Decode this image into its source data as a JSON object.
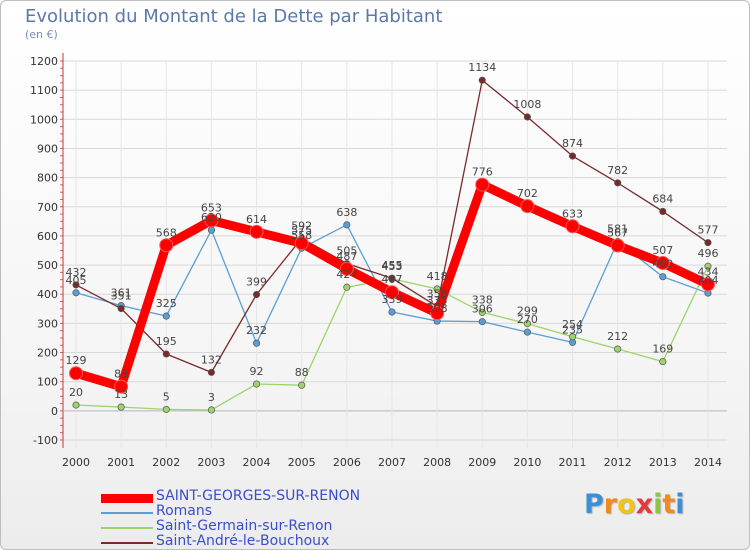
{
  "chart_data": {
    "type": "line",
    "title": "Evolution du Montant de la Dette par Habitant",
    "ylabel": "(en €)",
    "xlabel": "",
    "categories": [
      "2000",
      "2001",
      "2002",
      "2003",
      "2004",
      "2005",
      "2006",
      "2007",
      "2008",
      "2009",
      "2010",
      "2011",
      "2012",
      "2013",
      "2014"
    ],
    "yticks": [
      "-100",
      "0",
      "100",
      "200",
      "300",
      "400",
      "500",
      "600",
      "700",
      "800",
      "900",
      "1000",
      "1100",
      "1200"
    ],
    "ylim": [
      -100,
      1200
    ],
    "series": [
      {
        "name": "SAINT-GEORGES-SUR-RENON",
        "color": "#ff0000",
        "values": [
          129,
          83,
          568,
          653,
          614,
          575,
          487,
          407,
          335,
          776,
          702,
          633,
          567,
          507,
          434
        ]
      },
      {
        "name": "Romans",
        "color": "#5a9ed6",
        "values": [
          405,
          361,
          325,
          620,
          232,
          558,
          638,
          339,
          308,
          306,
          270,
          235,
          581,
          460,
          404
        ]
      },
      {
        "name": "Saint-Germain-sur-Renon",
        "color": "#9bd46a",
        "values": [
          20,
          13,
          5,
          3,
          92,
          88,
          424,
          453,
          418,
          338,
          299,
          254,
          212,
          169,
          496
        ]
      },
      {
        "name": "Saint-André-le-Bouchoux",
        "color": "#7a2a2a",
        "values": [
          432,
          351,
          195,
          132,
          399,
          592,
          505,
          455,
          358,
          1134,
          1008,
          874,
          782,
          684,
          577
        ]
      }
    ],
    "value_labels": [
      [
        "129",
        "83",
        "568",
        "653",
        "614",
        "575",
        "487",
        "407",
        "335",
        "776",
        "702",
        "633",
        "567",
        "507",
        "434"
      ],
      [
        "405",
        "361",
        "325",
        "620",
        "232",
        "558",
        "638",
        "339",
        "308",
        "306",
        "270",
        "235",
        "581",
        "460",
        "404"
      ],
      [
        "20",
        "13",
        "5",
        "3",
        "92",
        "88",
        "424",
        "453",
        "418",
        "338",
        "299",
        "254",
        "212",
        "169",
        "496"
      ],
      [
        "432",
        "351",
        "195",
        "132",
        "399",
        "592",
        "505",
        "455",
        "358",
        "1134",
        "1008",
        "874",
        "782",
        "684",
        "577"
      ]
    ]
  },
  "legend": {
    "items": [
      {
        "label": "SAINT-GEORGES-SUR-RENON",
        "color": "#ff0000"
      },
      {
        "label": "Romans",
        "color": "#5a9ed6"
      },
      {
        "label": "Saint-Germain-sur-Renon",
        "color": "#9bd46a"
      },
      {
        "label": "Saint-André-le-Bouchoux",
        "color": "#7a2a2a"
      }
    ]
  },
  "brand": {
    "letters": [
      "P",
      "r",
      "o",
      "x",
      "i",
      "t",
      "i"
    ],
    "colors": [
      "#3b8fd6",
      "#f08a1c",
      "#f0c419",
      "#e23b3b",
      "#8cc63f",
      "#f08a1c",
      "#3b8fd6"
    ]
  }
}
